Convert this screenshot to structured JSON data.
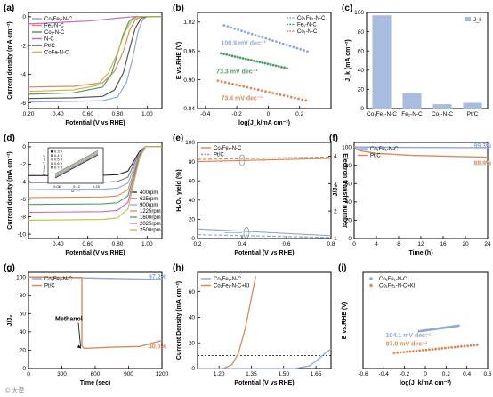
{
  "watermark": "© 大漠",
  "colors": {
    "co1fe1": "#8fa8d8",
    "fe1": "#d98a5a",
    "co1": "#4f9a6b",
    "nc": "#c36bc7",
    "ptc": "#555555",
    "cofe": "#c8b84a",
    "blue": "#8fa8d8",
    "orange": "#d98a5a",
    "green": "#4f9a6b",
    "bar": "#a8bce0"
  },
  "chart_data": [
    {
      "panel": "a",
      "type": "line",
      "xlabel": "Potential (V vs RHE)",
      "ylabel": "Current density (mA cm⁻²)",
      "xlim": [
        0.2,
        1.1
      ],
      "ylim": [
        -6.4,
        0.3
      ],
      "xticks": [
        0.2,
        0.4,
        0.6,
        0.8,
        1.0
      ],
      "yticks": [
        0,
        -2,
        -4,
        -6
      ],
      "legend": "top-left",
      "series": [
        {
          "name": "Co₁Fe₁-N-C",
          "color": "#8fa8d8",
          "points": [
            [
              0.2,
              -5.95
            ],
            [
              0.5,
              -5.9
            ],
            [
              0.7,
              -5.85
            ],
            [
              0.8,
              -5.6
            ],
            [
              0.86,
              -4.6
            ],
            [
              0.9,
              -3.0
            ],
            [
              0.94,
              -1.0
            ],
            [
              0.97,
              -0.2
            ],
            [
              1.0,
              0.0
            ],
            [
              1.1,
              0.0
            ]
          ]
        },
        {
          "name": "Fe₁-N-C",
          "color": "#d98a5a",
          "points": [
            [
              0.2,
              -4.9
            ],
            [
              0.5,
              -4.85
            ],
            [
              0.7,
              -4.6
            ],
            [
              0.78,
              -3.8
            ],
            [
              0.84,
              -2.4
            ],
            [
              0.88,
              -1.0
            ],
            [
              0.92,
              -0.2
            ],
            [
              0.96,
              0.0
            ],
            [
              1.1,
              0.0
            ]
          ]
        },
        {
          "name": "Co₁-N-C",
          "color": "#4f9a6b",
          "points": [
            [
              0.2,
              -5.4
            ],
            [
              0.5,
              -5.3
            ],
            [
              0.7,
              -4.9
            ],
            [
              0.76,
              -4.0
            ],
            [
              0.8,
              -2.6
            ],
            [
              0.84,
              -1.2
            ],
            [
              0.88,
              -0.3
            ],
            [
              0.92,
              0.0
            ],
            [
              1.1,
              0.0
            ]
          ]
        },
        {
          "name": "N-C",
          "color": "#c36bc7",
          "points": [
            [
              0.2,
              -0.5
            ],
            [
              0.3,
              -0.45
            ],
            [
              0.5,
              -0.35
            ],
            [
              0.6,
              -0.3
            ],
            [
              0.7,
              -0.2
            ],
            [
              0.8,
              -0.1
            ],
            [
              0.9,
              0.0
            ],
            [
              1.1,
              0.0
            ]
          ]
        },
        {
          "name": "Pt/C",
          "color": "#555555",
          "points": [
            [
              0.2,
              -5.7
            ],
            [
              0.5,
              -5.65
            ],
            [
              0.7,
              -5.55
            ],
            [
              0.78,
              -5.1
            ],
            [
              0.84,
              -3.9
            ],
            [
              0.88,
              -2.3
            ],
            [
              0.92,
              -0.8
            ],
            [
              0.96,
              -0.1
            ],
            [
              1.0,
              0.0
            ],
            [
              1.1,
              0.0
            ]
          ]
        },
        {
          "name": "CoFe-N-C",
          "color": "#c8b84a",
          "points": [
            [
              0.2,
              -5.2
            ],
            [
              0.5,
              -5.1
            ],
            [
              0.66,
              -4.8
            ],
            [
              0.74,
              -3.9
            ],
            [
              0.8,
              -2.5
            ],
            [
              0.85,
              -1.1
            ],
            [
              0.9,
              -0.2
            ],
            [
              0.94,
              0.0
            ],
            [
              1.1,
              0.0
            ]
          ]
        }
      ]
    },
    {
      "panel": "b",
      "type": "line",
      "xlabel": "log(J_k/mA cm⁻²)",
      "ylabel": "E vs.RHE (V)",
      "xlim": [
        -0.45,
        0.4
      ],
      "ylim": [
        0.84,
        1.04
      ],
      "xticks": [
        -0.4,
        -0.2,
        0.0,
        0.2
      ],
      "yticks": [
        0.84,
        0.9,
        0.96,
        1.02
      ],
      "legend": "top-right",
      "series": [
        {
          "name": "Co₁Fe₁-N-C",
          "color": "#8fa8d8",
          "points": [
            [
              -0.28,
              1.013
            ],
            [
              0.25,
              0.959
            ]
          ]
        },
        {
          "name": "Fe₁-N-C",
          "color": "#4f9a6b",
          "points": [
            [
              -0.3,
              0.955
            ],
            [
              0.12,
              0.924
            ]
          ]
        },
        {
          "name": "Co₁-N-C",
          "color": "#d98a5a",
          "points": [
            [
              -0.32,
              0.898
            ],
            [
              0.24,
              0.857
            ]
          ]
        }
      ],
      "annotations": [
        {
          "text": "100.9 mV dec⁻¹",
          "x": -0.3,
          "y": 0.972,
          "color": "#8fa8d8"
        },
        {
          "text": "73.3 mV dec⁻¹",
          "x": -0.33,
          "y": 0.913,
          "color": "#4f9a6b"
        },
        {
          "text": "73.4 mV dec⁻¹",
          "x": -0.3,
          "y": 0.858,
          "color": "#d98a5a"
        }
      ]
    },
    {
      "panel": "c",
      "type": "bar",
      "ylabel": "J_k (mA cm⁻²)",
      "categories": [
        "Co₁Fe₁-N-C",
        "Fe₁-N-C",
        "Co₁-N-C",
        "Pt/C"
      ],
      "values": [
        97,
        16,
        4.5,
        6
      ],
      "ylim": [
        0,
        100
      ],
      "yticks": [
        0,
        20,
        40,
        60,
        80,
        100
      ],
      "legend": "top-right",
      "legend_label": "J_k"
    },
    {
      "panel": "d",
      "type": "line",
      "xlabel": "Potential (V vs RHE)",
      "ylabel": "Current density (mA cm⁻²)",
      "xlim": [
        0.2,
        1.1
      ],
      "ylim": [
        -10.5,
        0.5
      ],
      "xticks": [
        0.4,
        0.6,
        0.8,
        1.0
      ],
      "yticks": [
        0,
        -2,
        -4,
        -6,
        -8,
        -10
      ],
      "legend": "bottom-right",
      "series": [
        {
          "name": "400rpm",
          "color": "#222222",
          "limit": -3.3
        },
        {
          "name": "625rpm",
          "color": "#777777",
          "limit": -4.1
        },
        {
          "name": "900rpm",
          "color": "#8fa8d8",
          "limit": -4.9
        },
        {
          "name": "1225rpm",
          "color": "#d98a5a",
          "limit": -5.8
        },
        {
          "name": "1600rpm",
          "color": "#4f9a6b",
          "limit": -6.6
        },
        {
          "name": "2025rpm",
          "color": "#c36bc7",
          "limit": -7.5
        },
        {
          "name": "2500rpm",
          "color": "#c8b84a",
          "limit": -8.4
        }
      ],
      "inset": {
        "xlabel": "ω⁻¹ᐟ²",
        "ylabel": "J⁻¹/mA⁻¹ cm²",
        "xticks": [
          0.08,
          0.12,
          0.15
        ],
        "legend": [
          "0.3 V",
          "0.4 V",
          "0.5 V",
          "0.6 V",
          "0.7 V"
        ]
      }
    },
    {
      "panel": "e",
      "type": "line",
      "xlabel": "Potential (V vs RHE)",
      "ylabel": "H₂O₂ yield (%)",
      "ylabel_right": "Electron transfer number",
      "xlim": [
        0.2,
        0.8
      ],
      "ylim": [
        0,
        100
      ],
      "ylim_right": [
        1,
        4.5
      ],
      "xticks": [
        0.2,
        0.4,
        0.6,
        0.8
      ],
      "yticks": [
        0,
        20,
        40,
        60,
        80,
        100
      ],
      "yticks_right": [
        1,
        2,
        3,
        4
      ],
      "legend": "top-left",
      "series": [
        {
          "name": "Co₁Fe₁-N-C",
          "color": "#8fa8d8",
          "axis": "left",
          "points": [
            [
              0.2,
              10
            ],
            [
              0.8,
              3
            ]
          ]
        },
        {
          "name": "Pt/C",
          "color": "#8fa8d8",
          "axis": "left",
          "dashed": true,
          "points": [
            [
              0.2,
              4
            ],
            [
              0.8,
              1
            ]
          ]
        },
        {
          "name": "Co₁Fe₁-N-C",
          "color": "#d98a5a",
          "axis": "right",
          "points": [
            [
              0.2,
              3.8
            ],
            [
              0.8,
              3.92
            ]
          ]
        },
        {
          "name": "Pt/C",
          "color": "#d98a5a",
          "axis": "right",
          "dashed": true,
          "points": [
            [
              0.2,
              3.88
            ],
            [
              0.8,
              3.97
            ]
          ]
        }
      ]
    },
    {
      "panel": "f",
      "type": "line",
      "xlabel": "Time (h)",
      "ylabel": "J/J₀",
      "xlim": [
        0,
        24
      ],
      "ylim": [
        0,
        105
      ],
      "xticks": [
        0,
        4,
        8,
        12,
        16,
        20,
        24
      ],
      "yticks": [
        0,
        20,
        40,
        60,
        80,
        100
      ],
      "legend": "top-left",
      "series": [
        {
          "name": "Co₁Fe₁-N-C",
          "color": "#8fa8d8",
          "points": [
            [
              0,
              100
            ],
            [
              6,
              99.7
            ],
            [
              12,
              99.5
            ],
            [
              18,
              99.4
            ],
            [
              24,
              99.3
            ]
          ]
        },
        {
          "name": "Pt/C",
          "color": "#d98a5a",
          "points": [
            [
              0,
              100
            ],
            [
              1,
              96
            ],
            [
              4,
              93
            ],
            [
              10,
              91
            ],
            [
              16,
              90
            ],
            [
              24,
              88.9
            ]
          ]
        }
      ],
      "annotations": [
        {
          "text": "99.3%",
          "x": 21.5,
          "y": 99.3,
          "color": "#8fa8d8"
        },
        {
          "text": "88.9%",
          "x": 21.5,
          "y": 80,
          "color": "#d98a5a"
        }
      ]
    },
    {
      "panel": "g",
      "type": "line",
      "xlabel": "Time (sec)",
      "ylabel": "J/J₀",
      "xlim": [
        0,
        1200
      ],
      "ylim": [
        0,
        105
      ],
      "xticks": [
        0,
        300,
        600,
        900,
        1200
      ],
      "yticks": [
        0,
        20,
        40,
        60,
        80,
        100
      ],
      "legend": "top-left",
      "series": [
        {
          "name": "Co₁Fe₁-N-C",
          "color": "#8fa8d8",
          "points": [
            [
              0,
              100
            ],
            [
              500,
              99
            ],
            [
              900,
              98
            ],
            [
              1200,
              97.2
            ]
          ]
        },
        {
          "name": "Pt/C",
          "color": "#d98a5a",
          "points": [
            [
              0,
              100
            ],
            [
              480,
              99.5
            ],
            [
              480,
              25
            ],
            [
              500,
              22
            ],
            [
              700,
              23
            ],
            [
              1000,
              24
            ],
            [
              1200,
              30.6
            ]
          ]
        }
      ],
      "annotations": [
        {
          "text": "97.2%",
          "x": 1080,
          "y": 98,
          "color": "#8fa8d8"
        },
        {
          "text": "30.6%",
          "x": 1080,
          "y": 22,
          "color": "#d98a5a"
        },
        {
          "text": "Methanol",
          "x": 240,
          "y": 52,
          "color": "#000000"
        }
      ]
    },
    {
      "panel": "h",
      "type": "line",
      "xlabel": "Potential (V vs RHE)",
      "ylabel": "Current Density (mA cm⁻²)",
      "xlim": [
        1.1,
        1.72
      ],
      "ylim": [
        0,
        75
      ],
      "xticks": [
        1.2,
        1.35,
        1.5,
        1.65
      ],
      "yticks": [
        0,
        20,
        40,
        60
      ],
      "legend": "top-left",
      "reference_line": 10,
      "series": [
        {
          "name": "Co₁Fe₁-N-C",
          "color": "#8fa8d8",
          "points": [
            [
              1.1,
              0
            ],
            [
              1.55,
              0
            ],
            [
              1.62,
              2
            ],
            [
              1.66,
              7
            ],
            [
              1.7,
              13
            ],
            [
              1.72,
              15
            ]
          ]
        },
        {
          "name": "Co₁Fe₁-N-C+KI",
          "color": "#d98a5a",
          "points": [
            [
              1.22,
              0
            ],
            [
              1.26,
              3
            ],
            [
              1.29,
              12
            ],
            [
              1.32,
              30
            ],
            [
              1.35,
              55
            ],
            [
              1.37,
              72
            ]
          ]
        }
      ]
    },
    {
      "panel": "i",
      "type": "scatter",
      "xlabel": "log(J_k/mA cm⁻²)",
      "ylabel": "E vs.RHE (V)",
      "xlim": [
        -0.6,
        0.6
      ],
      "ylim": [
        0.9,
        1.3
      ],
      "xticks": [
        -0.6,
        -0.4,
        -0.2,
        0.0,
        0.2,
        0.4,
        0.6
      ],
      "legend": "top-left",
      "series": [
        {
          "name": "Co₁Fe₁-N-C",
          "color": "#8fa8d8",
          "points": [
            [
              -0.06,
              1.055
            ],
            [
              0.32,
              1.078
            ]
          ]
        },
        {
          "name": "Co₁Fe₁-N-C+KI",
          "color": "#d98a5a",
          "points": [
            [
              -0.3,
              0.964
            ],
            [
              0.5,
              0.998
            ]
          ]
        }
      ],
      "annotations": [
        {
          "text": "104.1 mV dec⁻¹",
          "x": -0.38,
          "y": 1.03,
          "color": "#8fa8d8"
        },
        {
          "text": "87.0 mV dec⁻¹",
          "x": -0.38,
          "y": 0.995,
          "color": "#d98a5a"
        }
      ]
    }
  ]
}
